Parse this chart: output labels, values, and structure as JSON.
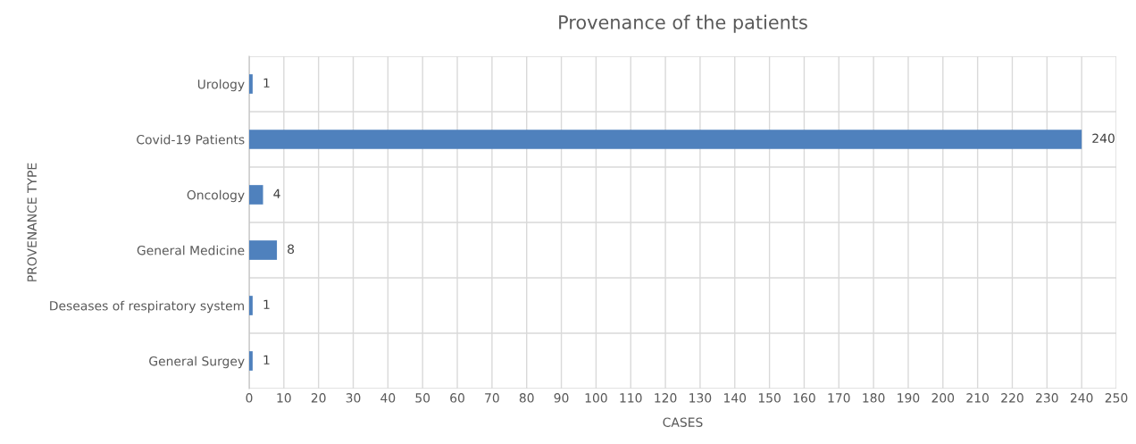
{
  "chart_data": {
    "type": "bar",
    "orientation": "horizontal",
    "title": "Provenance of the patients",
    "xlabel": "CASES",
    "ylabel": "PROVENANCE TYPE",
    "categories": [
      "Urology",
      "Covid-19 Patients",
      "Oncology",
      "General Medicine",
      "Deseases of respiratory system",
      "General Surgey"
    ],
    "values": [
      1,
      240,
      4,
      8,
      1,
      1
    ],
    "color": "#4f81bd",
    "xlim": [
      0,
      250
    ],
    "xticks": [
      0,
      10,
      20,
      30,
      40,
      50,
      60,
      70,
      80,
      90,
      100,
      110,
      120,
      130,
      140,
      150,
      160,
      170,
      180,
      190,
      200,
      210,
      220,
      230,
      240,
      250
    ],
    "grid": true,
    "data_labels": true
  }
}
